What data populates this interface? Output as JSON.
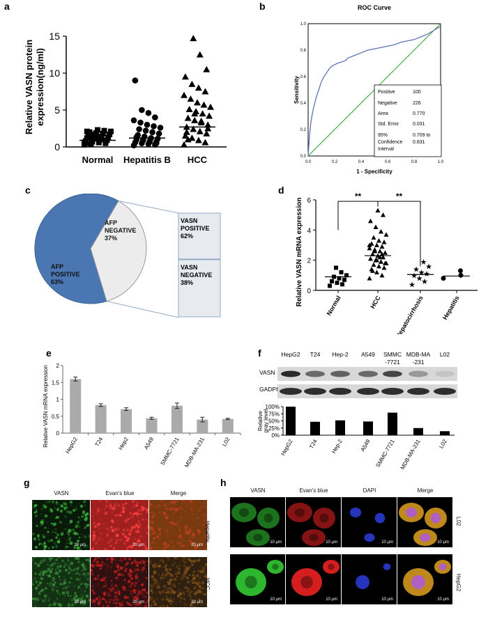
{
  "panel_labels": {
    "a": "a",
    "b": "b",
    "c": "c",
    "d": "d",
    "e": "e",
    "f": "f",
    "g": "g",
    "h": "h"
  },
  "colors": {
    "roc_curve": "#5b73b8",
    "diagonal": "#2ca02c",
    "pie_blue": "#4a76b2",
    "pie_light": "#ececec",
    "box_fill": "#e7eaef",
    "bar_gray": "#aaaaaa"
  },
  "chart_data": [
    {
      "id": "a",
      "type": "scatter",
      "ylabel": "Relative VASN protein expression(ng/ml)",
      "categories": [
        "Normal",
        "Hepatitis B",
        "HCC"
      ],
      "ylim": [
        0,
        15
      ],
      "yticks": [
        0,
        5,
        10,
        15
      ],
      "markers": [
        "square",
        "circle",
        "triangle"
      ],
      "series": [
        {
          "values": [
            0.3,
            0.5,
            0.6,
            0.7,
            0.8,
            0.9,
            1.0,
            1.1,
            1.2,
            1.3,
            1.4,
            1.5,
            1.6,
            1.7,
            1.8,
            1.9,
            2.0,
            2.1,
            2.2,
            2.3,
            0.4,
            0.6,
            0.8,
            1.0,
            1.2,
            0.5,
            0.9,
            1.3,
            1.7,
            2.1
          ],
          "median": 0.9
        },
        {
          "values": [
            0.2,
            0.3,
            0.4,
            0.5,
            0.6,
            0.7,
            0.8,
            0.9,
            1.0,
            1.1,
            1.2,
            1.4,
            1.6,
            1.8,
            2.0,
            2.2,
            2.4,
            2.6,
            2.8,
            3.0,
            3.3,
            3.6,
            4.0,
            4.6,
            5.0,
            9.0,
            0.5,
            0.7,
            1.0,
            1.3
          ],
          "median": 1.2
        },
        {
          "values": [
            0.3,
            0.6,
            0.9,
            1.2,
            1.5,
            1.8,
            2.1,
            2.4,
            2.7,
            3.0,
            3.3,
            3.6,
            3.9,
            4.2,
            4.5,
            4.8,
            5.1,
            5.4,
            5.7,
            6.0,
            6.5,
            7.0,
            7.5,
            8.0,
            8.5,
            9.5,
            10.5,
            12.5,
            14.7,
            2.0,
            2.5,
            3.5,
            4.5,
            1.0
          ],
          "median": 2.7
        }
      ]
    },
    {
      "id": "b",
      "type": "line",
      "title": "ROC Curve",
      "xlabel": "1 - Specificity",
      "ylabel": "Sensitivity",
      "xlim": [
        0,
        1
      ],
      "ylim": [
        0,
        1
      ],
      "ticks": [
        "0.0",
        "0.2",
        "0.4",
        "0.6",
        "0.8",
        "1.0"
      ],
      "roc_x": [
        0,
        0.01,
        0.02,
        0.03,
        0.04,
        0.05,
        0.06,
        0.07,
        0.08,
        0.09,
        0.1,
        0.12,
        0.14,
        0.16,
        0.18,
        0.2,
        0.22,
        0.25,
        0.28,
        0.3,
        0.35,
        0.4,
        0.45,
        0.5,
        0.55,
        0.6,
        0.65,
        0.7,
        0.75,
        0.8,
        0.85,
        0.9,
        0.95,
        1.0
      ],
      "roc_y": [
        0,
        0.15,
        0.25,
        0.31,
        0.36,
        0.4,
        0.44,
        0.47,
        0.5,
        0.53,
        0.56,
        0.6,
        0.63,
        0.66,
        0.68,
        0.69,
        0.7,
        0.71,
        0.72,
        0.74,
        0.76,
        0.78,
        0.8,
        0.81,
        0.82,
        0.83,
        0.84,
        0.86,
        0.87,
        0.88,
        0.9,
        0.92,
        0.95,
        0.98
      ],
      "stats": [
        [
          "Positive",
          "100"
        ],
        [
          "Negative",
          "226"
        ],
        [
          "Area",
          "0.770"
        ],
        [
          "Std. Error",
          "0.031"
        ],
        [
          "95% Confidence Interval",
          "0.709 to 0.831"
        ]
      ]
    },
    {
      "id": "c",
      "type": "pie",
      "slices": [
        {
          "label": "AFP POSITIVE",
          "value": 63
        },
        {
          "label": "AFP NEGATIVE",
          "value": 37
        }
      ],
      "breakdown": [
        {
          "label": "VASN POSITIVE",
          "value": 62
        },
        {
          "label": "VASN NEGATIVE",
          "value": 38
        }
      ]
    },
    {
      "id": "d",
      "type": "scatter",
      "ylabel": "Relative VASN mRNA expression",
      "categories": [
        "Normal",
        "HCC",
        "Hepatocirrhosis",
        "Hepatitis"
      ],
      "ylim": [
        0,
        6
      ],
      "yticks": [
        0,
        2,
        4,
        6
      ],
      "significance": [
        "**",
        "**"
      ],
      "series": [
        {
          "values": [
            0.3,
            0.4,
            0.5,
            0.6,
            0.7,
            0.8,
            0.9,
            1.0,
            1.2,
            1.5
          ],
          "median": 0.9
        },
        {
          "values": [
            0.8,
            1.0,
            1.2,
            1.4,
            1.5,
            1.6,
            1.7,
            1.8,
            1.9,
            2.0,
            2.1,
            2.2,
            2.3,
            2.4,
            2.5,
            2.6,
            2.7,
            2.8,
            2.9,
            3.0,
            3.1,
            3.2,
            3.3,
            3.5,
            3.7,
            3.9,
            4.2,
            4.6,
            5.0,
            5.3,
            1.3,
            1.8,
            2.2,
            2.6,
            3.0,
            2.4,
            2.0
          ],
          "median": 2.3
        },
        {
          "values": [
            0.4,
            0.6,
            0.8,
            1.0,
            1.1,
            1.2,
            1.4,
            1.6,
            1.9
          ],
          "median": 1.05
        },
        {
          "values": [
            0.8,
            1.0,
            1.3
          ],
          "median": 0.95
        }
      ]
    },
    {
      "id": "e",
      "type": "bar",
      "ylabel": "Relative VASN mRNA expression",
      "categories": [
        "HepG2",
        "T24",
        "Hep2",
        "A549",
        "SMMC-7721",
        "MDB-MA-231",
        "L02"
      ],
      "values": [
        1.6,
        0.83,
        0.71,
        0.44,
        0.81,
        0.4,
        0.42
      ],
      "errors": [
        0.06,
        0.04,
        0.04,
        0.03,
        0.08,
        0.07,
        0.02
      ],
      "ylim": [
        0,
        2
      ],
      "yticks": [
        "0",
        "0.5",
        "1",
        "1.5",
        "2"
      ]
    },
    {
      "id": "f",
      "type": "bar",
      "ylabel": "Relative gray level",
      "categories": [
        "HepG2",
        "T24",
        "Hep-2",
        "A549",
        "SMMC-7721",
        "MDB-MA-231",
        "L02"
      ],
      "values": [
        100,
        47,
        52,
        48,
        79,
        25,
        14
      ],
      "ylim": [
        0,
        100
      ],
      "yticks": [
        "0%",
        "25%",
        "50%",
        "75%",
        "100%"
      ]
    }
  ],
  "blot": {
    "headers": [
      "HepG2",
      "T24",
      "Hep-2",
      "A549",
      "SMMC\n-7721",
      "MDB-MA\n-231",
      "L02"
    ],
    "rows": [
      "VASN",
      "GADPH"
    ]
  },
  "micro_g": {
    "cols": [
      "VASN",
      "Evan's blue",
      "Merge"
    ],
    "rows": [
      "Hepatitis",
      "HCC"
    ],
    "scale": "20 μm"
  },
  "micro_h": {
    "cols": [
      "VASN",
      "Evan's blue",
      "DAPI",
      "Merge"
    ],
    "rows": [
      "L02",
      "HepG2"
    ],
    "scale": "10 μm"
  }
}
